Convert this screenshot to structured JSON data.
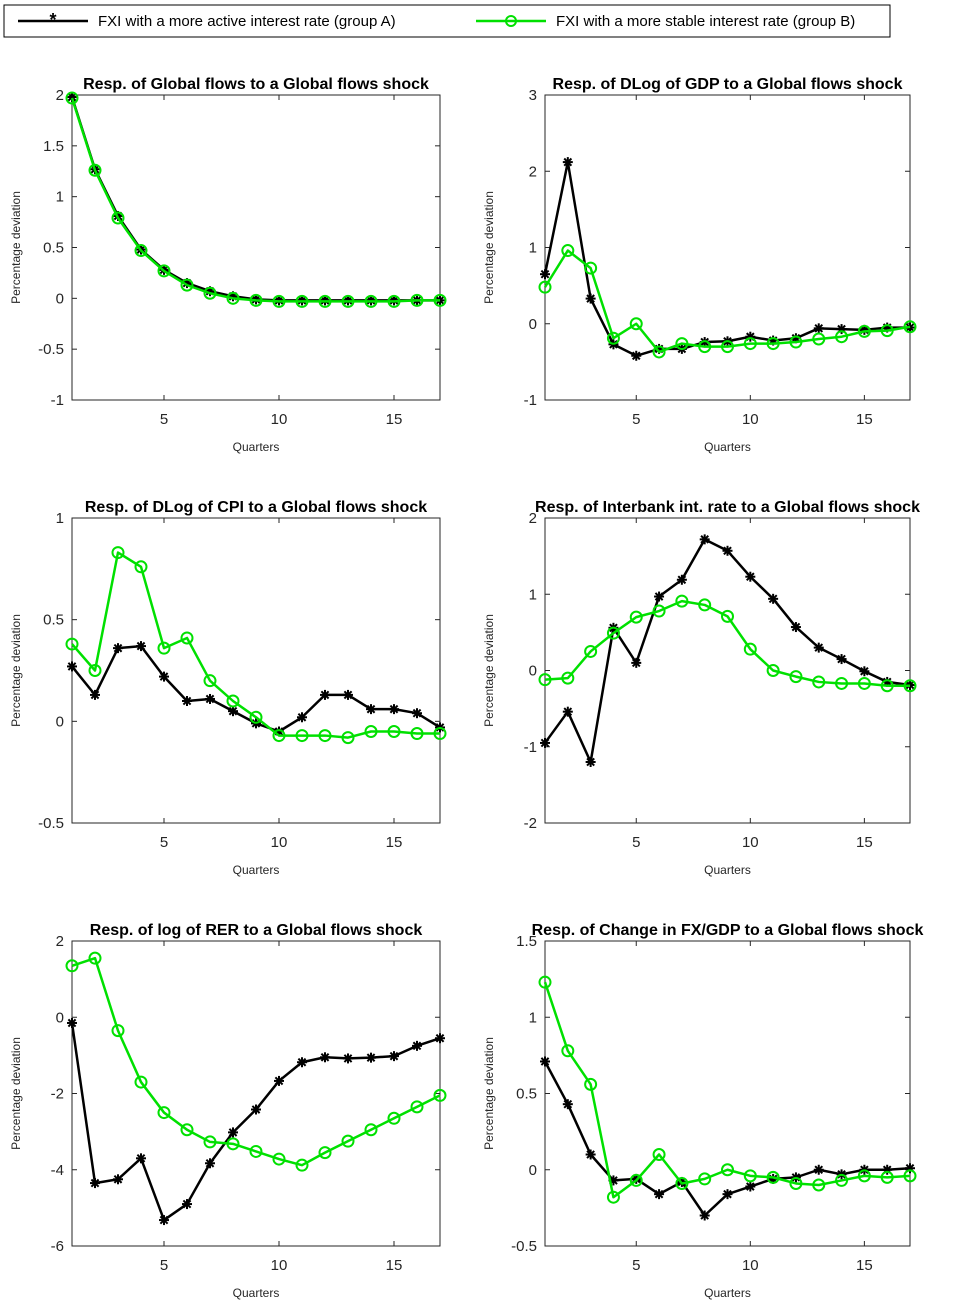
{
  "legend": {
    "entries": [
      {
        "label": "FXI with a more active interest rate (group A)",
        "color": "#000000",
        "marker": "asterisk"
      },
      {
        "label": "FXI with a more stable interest rate (group B)",
        "color": "#00e000",
        "marker": "circle"
      }
    ]
  },
  "colors": {
    "group_a": "#000000",
    "group_b": "#00e000"
  },
  "chart_data": [
    {
      "type": "line",
      "title": "Resp. of Global flows to a Global flows shock",
      "xlabel": "Quarters",
      "ylabel": "Percentage deviation",
      "xlim": [
        1,
        17
      ],
      "ylim": [
        -1,
        2
      ],
      "xticks": [
        5,
        10,
        15
      ],
      "yticks": [
        -1,
        -0.5,
        0,
        0.5,
        1,
        1.5,
        2
      ],
      "ytick_labels": [
        "-1",
        "-0.5",
        "0",
        "0.5",
        "1",
        "1.5",
        "2"
      ],
      "x": [
        1,
        2,
        3,
        4,
        5,
        6,
        7,
        8,
        9,
        10,
        11,
        12,
        13,
        14,
        15,
        16,
        17
      ],
      "series": [
        {
          "name": "FXI with a more active interest rate (group A)",
          "values": [
            1.98,
            1.27,
            0.81,
            0.48,
            0.28,
            0.15,
            0.07,
            0.02,
            -0.01,
            -0.02,
            -0.02,
            -0.02,
            -0.02,
            -0.02,
            -0.02,
            -0.02,
            -0.02
          ]
        },
        {
          "name": "FXI with a more stable interest rate (group B)",
          "values": [
            1.97,
            1.26,
            0.79,
            0.47,
            0.27,
            0.13,
            0.05,
            0.0,
            -0.02,
            -0.03,
            -0.03,
            -0.03,
            -0.03,
            -0.03,
            -0.03,
            -0.02,
            -0.02
          ]
        }
      ]
    },
    {
      "type": "line",
      "title": "Resp. of DLog of GDP to a Global flows shock",
      "xlabel": "Quarters",
      "ylabel": "Percentage deviation",
      "xlim": [
        1,
        17
      ],
      "ylim": [
        -1,
        3
      ],
      "xticks": [
        5,
        10,
        15
      ],
      "yticks": [
        -1,
        0,
        1,
        2,
        3
      ],
      "ytick_labels": [
        "-1",
        "0",
        "1",
        "2",
        "3"
      ],
      "x": [
        1,
        2,
        3,
        4,
        5,
        6,
        7,
        8,
        9,
        10,
        11,
        12,
        13,
        14,
        15,
        16,
        17
      ],
      "series": [
        {
          "name": "FXI with a more active interest rate (group A)",
          "values": [
            0.65,
            2.12,
            0.33,
            -0.27,
            -0.42,
            -0.33,
            -0.33,
            -0.24,
            -0.23,
            -0.17,
            -0.22,
            -0.19,
            -0.06,
            -0.07,
            -0.08,
            -0.05,
            -0.05
          ]
        },
        {
          "name": "FXI with a more stable interest rate (group B)",
          "values": [
            0.48,
            0.96,
            0.73,
            -0.19,
            0.0,
            -0.37,
            -0.26,
            -0.3,
            -0.3,
            -0.26,
            -0.26,
            -0.24,
            -0.2,
            -0.17,
            -0.1,
            -0.09,
            -0.04
          ]
        }
      ]
    },
    {
      "type": "line",
      "title": "Resp. of DLog of CPI to a Global flows shock",
      "xlabel": "Quarters",
      "ylabel": "Percentage deviation",
      "xlim": [
        1,
        17
      ],
      "ylim": [
        -0.5,
        1
      ],
      "xticks": [
        5,
        10,
        15
      ],
      "yticks": [
        -0.5,
        0,
        0.5,
        1
      ],
      "ytick_labels": [
        "-0.5",
        "0",
        "0.5",
        "1"
      ],
      "x": [
        1,
        2,
        3,
        4,
        5,
        6,
        7,
        8,
        9,
        10,
        11,
        12,
        13,
        14,
        15,
        16,
        17
      ],
      "series": [
        {
          "name": "FXI with a more active interest rate (group A)",
          "values": [
            0.27,
            0.13,
            0.36,
            0.37,
            0.22,
            0.1,
            0.11,
            0.05,
            -0.01,
            -0.05,
            0.02,
            0.13,
            0.13,
            0.06,
            0.06,
            0.04,
            -0.03
          ]
        },
        {
          "name": "FXI with a more stable interest rate (group B)",
          "values": [
            0.38,
            0.25,
            0.83,
            0.76,
            0.36,
            0.41,
            0.2,
            0.1,
            0.02,
            -0.07,
            -0.07,
            -0.07,
            -0.08,
            -0.05,
            -0.05,
            -0.06,
            -0.06
          ]
        }
      ]
    },
    {
      "type": "line",
      "title": "Resp. of Interbank int. rate to a Global flows shock",
      "xlabel": "Quarters",
      "ylabel": "Percentage deviation",
      "xlim": [
        1,
        17
      ],
      "ylim": [
        -2,
        2
      ],
      "xticks": [
        5,
        10,
        15
      ],
      "yticks": [
        -2,
        -1,
        0,
        1,
        2
      ],
      "ytick_labels": [
        "-2",
        "-1",
        "0",
        "1",
        "2"
      ],
      "x": [
        1,
        2,
        3,
        4,
        5,
        6,
        7,
        8,
        9,
        10,
        11,
        12,
        13,
        14,
        15,
        16,
        17
      ],
      "series": [
        {
          "name": "FXI with a more active interest rate (group A)",
          "values": [
            -0.95,
            -0.54,
            -1.2,
            0.56,
            0.1,
            0.97,
            1.19,
            1.72,
            1.57,
            1.23,
            0.94,
            0.57,
            0.3,
            0.15,
            -0.01,
            -0.15,
            -0.19
          ]
        },
        {
          "name": "FXI with a more stable interest rate (group B)",
          "values": [
            -0.12,
            -0.1,
            0.25,
            0.49,
            0.7,
            0.78,
            0.91,
            0.86,
            0.71,
            0.28,
            0.0,
            -0.08,
            -0.15,
            -0.17,
            -0.17,
            -0.2,
            -0.2
          ]
        }
      ]
    },
    {
      "type": "line",
      "title": "Resp. of log of RER to a Global flows shock",
      "xlabel": "Quarters",
      "ylabel": "Percentage deviation",
      "xlim": [
        1,
        17
      ],
      "ylim": [
        -6,
        2
      ],
      "xticks": [
        5,
        10,
        15
      ],
      "yticks": [
        -6,
        -4,
        -2,
        0,
        2
      ],
      "ytick_labels": [
        "-6",
        "-4",
        "-2",
        "0",
        "2"
      ],
      "x": [
        1,
        2,
        3,
        4,
        5,
        6,
        7,
        8,
        9,
        10,
        11,
        12,
        13,
        14,
        15,
        16,
        17
      ],
      "series": [
        {
          "name": "FXI with a more active interest rate (group A)",
          "values": [
            -0.15,
            -4.35,
            -4.25,
            -3.7,
            -5.32,
            -4.9,
            -3.83,
            -3.02,
            -2.42,
            -1.67,
            -1.18,
            -1.05,
            -1.08,
            -1.06,
            -1.02,
            -0.75,
            -0.55
          ]
        },
        {
          "name": "FXI with a more stable interest rate (group B)",
          "values": [
            1.35,
            1.55,
            -0.35,
            -1.7,
            -2.5,
            -2.95,
            -3.27,
            -3.32,
            -3.52,
            -3.72,
            -3.88,
            -3.55,
            -3.25,
            -2.95,
            -2.65,
            -2.35,
            -2.05
          ]
        }
      ]
    },
    {
      "type": "line",
      "title": "Resp. of Change in FX/GDP to a Global flows shock",
      "xlabel": "Quarters",
      "ylabel": "Percentage deviation",
      "xlim": [
        1,
        17
      ],
      "ylim": [
        -0.5,
        1.5
      ],
      "xticks": [
        5,
        10,
        15
      ],
      "yticks": [
        -0.5,
        0,
        0.5,
        1,
        1.5
      ],
      "ytick_labels": [
        "-0.5",
        "0",
        "0.5",
        "1",
        "1.5"
      ],
      "x": [
        1,
        2,
        3,
        4,
        5,
        6,
        7,
        8,
        9,
        10,
        11,
        12,
        13,
        14,
        15,
        16,
        17
      ],
      "series": [
        {
          "name": "FXI with a more active interest rate (group A)",
          "values": [
            0.71,
            0.43,
            0.1,
            -0.07,
            -0.06,
            -0.16,
            -0.08,
            -0.3,
            -0.16,
            -0.11,
            -0.06,
            -0.05,
            0.0,
            -0.03,
            0.0,
            0.0,
            0.01
          ]
        },
        {
          "name": "FXI with a more stable interest rate (group B)",
          "values": [
            1.23,
            0.78,
            0.56,
            -0.18,
            -0.07,
            0.1,
            -0.09,
            -0.06,
            0.0,
            -0.04,
            -0.05,
            -0.09,
            -0.1,
            -0.07,
            -0.04,
            -0.05,
            -0.04
          ]
        }
      ]
    }
  ]
}
